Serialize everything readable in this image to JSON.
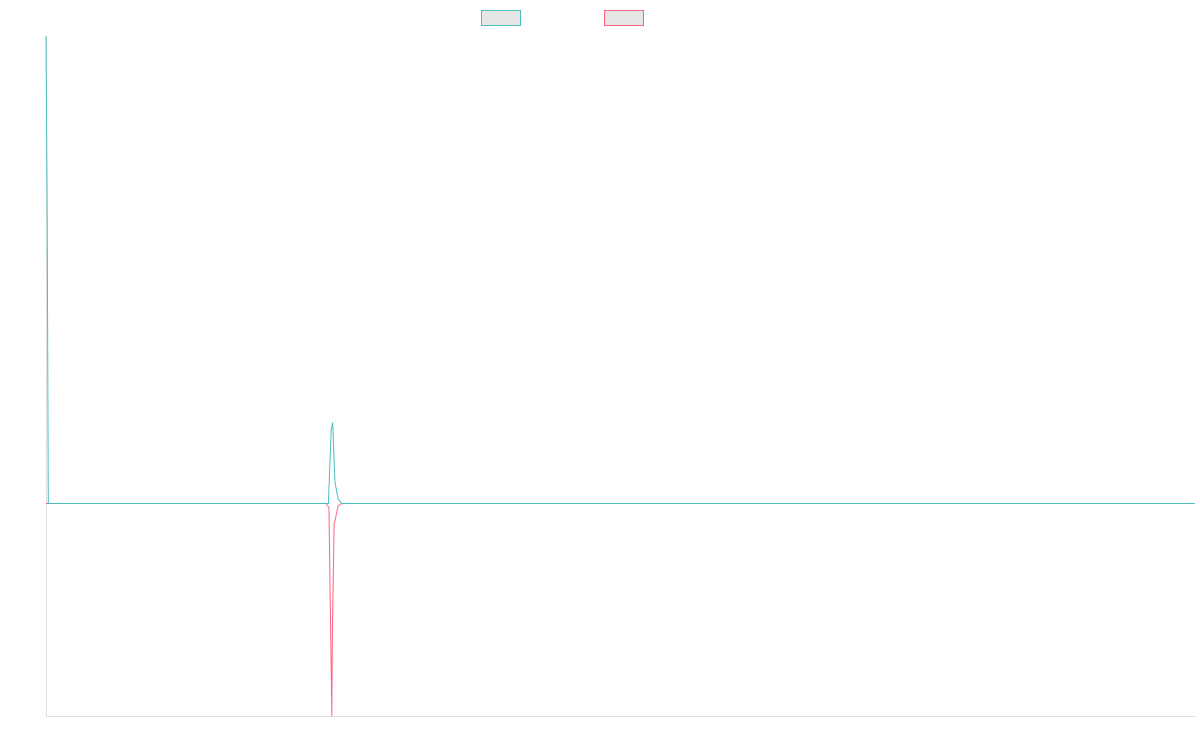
{
  "chart_data": {
    "type": "line",
    "title": "",
    "xlabel": "",
    "ylabel": "",
    "grid": false,
    "legend": {
      "position": "top-center"
    },
    "x_range": [
      0,
      400
    ],
    "ylim": [
      -1,
      2.2
    ],
    "series": [
      {
        "color": "#4bc0c0",
        "points": [
          [
            0,
            2.2
          ],
          [
            0.4,
            1.4
          ],
          [
            0.8,
            0.002
          ],
          [
            1.5,
            0
          ],
          [
            98.3,
            0
          ],
          [
            99.3,
            0.35
          ],
          [
            99.8,
            0.38
          ],
          [
            100.6,
            0.1
          ],
          [
            101.7,
            0.02
          ],
          [
            103,
            0
          ],
          [
            400,
            0
          ]
        ]
      },
      {
        "color": "#ff6384",
        "points": [
          [
            0,
            0
          ],
          [
            97.5,
            0
          ],
          [
            98.5,
            -0.02
          ],
          [
            99.3,
            -0.8
          ],
          [
            99.5,
            -1.0
          ],
          [
            99.7,
            -0.6
          ],
          [
            100.3,
            -0.1
          ],
          [
            101.7,
            -0.01
          ],
          [
            103,
            0
          ],
          [
            400,
            0
          ]
        ]
      }
    ]
  }
}
